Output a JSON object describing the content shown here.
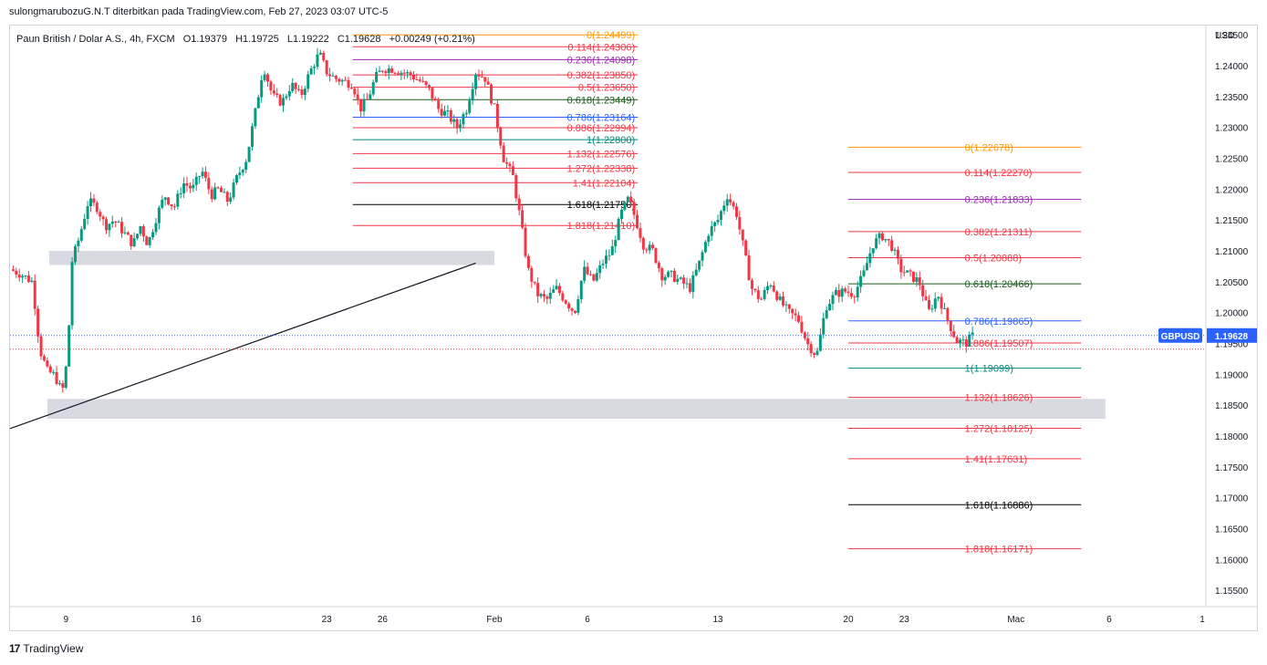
{
  "header": {
    "publisher": "sulongmarubozuG.N.T diterbitkan pada TradingView.com, Feb 27, 2023 03:07 UTC-5"
  },
  "ohlc_line": {
    "symbol": "Paun British / Dolar A.S., 4h, FXCM",
    "open": "O1.19379",
    "high": "H1.19725",
    "low": "L1.19222",
    "close": "C1.19628",
    "change": "+0.00249 (+0.21%)"
  },
  "footer": {
    "brand": "TradingView",
    "logo_glyph": "17"
  },
  "chart_data": {
    "type": "candlestick",
    "symbol": "GBPUSD",
    "timeframe": "4h",
    "currency_label": "USD",
    "last_price": 1.19628,
    "last_price_label": "1.19628",
    "ylim": [
      1.1525,
      1.2465
    ],
    "y_ticks": [
      1.245,
      1.24,
      1.235,
      1.23,
      1.225,
      1.22,
      1.215,
      1.21,
      1.205,
      1.2,
      1.195,
      1.19,
      1.185,
      1.18,
      1.175,
      1.17,
      1.165,
      1.16,
      1.155
    ],
    "y_tick_labels": [
      "1.24500",
      "1.24000",
      "1.23500",
      "1.23000",
      "1.22500",
      "1.22000",
      "1.21500",
      "1.21000",
      "1.20500",
      "1.20000",
      "1.19500",
      "1.19000",
      "1.18500",
      "1.18000",
      "1.17500",
      "1.17000",
      "1.16500",
      "1.16000",
      "1.15500"
    ],
    "x_ticks": [
      {
        "label": "9",
        "day": 9
      },
      {
        "label": "16",
        "day": 16
      },
      {
        "label": "23",
        "day": 23
      },
      {
        "label": "26",
        "day": 26
      },
      {
        "label": "Feb",
        "day": 32
      },
      {
        "label": "6",
        "day": 37
      },
      {
        "label": "13",
        "day": 44
      },
      {
        "label": "20",
        "day": 51
      },
      {
        "label": "23",
        "day": 54
      },
      {
        "label": "Mac",
        "day": 60
      },
      {
        "label": "6",
        "day": 65
      },
      {
        "label": "1",
        "day": 70
      }
    ],
    "xlim_days": [
      6.0,
      70.0
    ],
    "price_path": [
      [
        6.0,
        1.207
      ],
      [
        6.6,
        1.2062
      ],
      [
        7.2,
        1.205
      ],
      [
        7.6,
        1.194
      ],
      [
        8.0,
        1.1905
      ],
      [
        8.4,
        1.1898
      ],
      [
        8.8,
        1.187
      ],
      [
        9.1,
        1.193
      ],
      [
        9.3,
        1.208
      ],
      [
        9.7,
        1.212
      ],
      [
        10.2,
        1.218
      ],
      [
        10.7,
        1.217
      ],
      [
        11.1,
        1.214
      ],
      [
        11.6,
        1.215
      ],
      [
        12.1,
        1.213
      ],
      [
        12.6,
        1.211
      ],
      [
        13.0,
        1.214
      ],
      [
        13.4,
        1.211
      ],
      [
        13.8,
        1.215
      ],
      [
        14.3,
        1.219
      ],
      [
        14.8,
        1.217
      ],
      [
        15.3,
        1.221
      ],
      [
        15.8,
        1.22
      ],
      [
        16.3,
        1.223
      ],
      [
        16.8,
        1.219
      ],
      [
        17.2,
        1.22
      ],
      [
        17.7,
        1.218
      ],
      [
        18.2,
        1.222
      ],
      [
        18.7,
        1.225
      ],
      [
        19.2,
        1.233
      ],
      [
        19.6,
        1.24
      ],
      [
        20.1,
        1.235
      ],
      [
        20.6,
        1.234
      ],
      [
        21.1,
        1.237
      ],
      [
        21.6,
        1.235
      ],
      [
        22.1,
        1.239
      ],
      [
        22.6,
        1.242
      ],
      [
        23.0,
        1.239
      ],
      [
        23.4,
        1.238
      ],
      [
        23.9,
        1.2375
      ],
      [
        24.4,
        1.237
      ],
      [
        24.8,
        1.233
      ],
      [
        25.2,
        1.2345
      ],
      [
        25.6,
        1.238
      ],
      [
        26.0,
        1.2395
      ],
      [
        26.5,
        1.2395
      ],
      [
        27.0,
        1.239
      ],
      [
        27.5,
        1.2385
      ],
      [
        28.0,
        1.2375
      ],
      [
        28.5,
        1.236
      ],
      [
        29.0,
        1.233
      ],
      [
        29.5,
        1.232
      ],
      [
        30.0,
        1.23
      ],
      [
        30.5,
        1.233
      ],
      [
        31.0,
        1.239
      ],
      [
        31.5,
        1.238
      ],
      [
        32.0,
        1.233
      ],
      [
        32.5,
        1.225
      ],
      [
        33.0,
        1.222
      ],
      [
        33.4,
        1.215
      ],
      [
        33.8,
        1.207
      ],
      [
        34.3,
        1.203
      ],
      [
        34.8,
        1.202
      ],
      [
        35.3,
        1.204
      ],
      [
        35.8,
        1.202
      ],
      [
        36.3,
        1.2
      ],
      [
        36.8,
        1.207
      ],
      [
        37.3,
        1.205
      ],
      [
        37.8,
        1.208
      ],
      [
        38.3,
        1.21
      ],
      [
        38.8,
        1.216
      ],
      [
        39.2,
        1.2185
      ],
      [
        39.6,
        1.215
      ],
      [
        40.0,
        1.211
      ],
      [
        40.5,
        1.21
      ],
      [
        41.0,
        1.206
      ],
      [
        41.5,
        1.206
      ],
      [
        42.0,
        1.205
      ],
      [
        42.5,
        1.204
      ],
      [
        43.0,
        1.208
      ],
      [
        43.5,
        1.213
      ],
      [
        44.0,
        1.215
      ],
      [
        44.5,
        1.219
      ],
      [
        45.0,
        1.216
      ],
      [
        45.4,
        1.21
      ],
      [
        45.8,
        1.204
      ],
      [
        46.3,
        1.202
      ],
      [
        46.8,
        1.205
      ],
      [
        47.3,
        1.202
      ],
      [
        47.8,
        1.2
      ],
      [
        48.3,
        1.199
      ],
      [
        48.8,
        1.195
      ],
      [
        49.3,
        1.193
      ],
      [
        49.8,
        1.201
      ],
      [
        50.3,
        1.203
      ],
      [
        50.8,
        1.2035
      ],
      [
        51.3,
        1.203
      ],
      [
        51.8,
        1.206
      ],
      [
        52.3,
        1.211
      ],
      [
        52.8,
        1.2125
      ],
      [
        53.3,
        1.211
      ],
      [
        53.8,
        1.207
      ],
      [
        54.3,
        1.206
      ],
      [
        54.8,
        1.205
      ],
      [
        55.3,
        1.2
      ],
      [
        55.8,
        1.203
      ],
      [
        56.3,
        1.199
      ],
      [
        56.8,
        1.1955
      ],
      [
        57.3,
        1.195
      ],
      [
        57.7,
        1.1963
      ]
    ],
    "fib_set_1": {
      "color_note": "upper-left retracement",
      "levels": [
        {
          "label": "0(1.24499)",
          "price": 1.24499,
          "color": "#ff9800"
        },
        {
          "label": "0.114(1.24306)",
          "price": 1.24306,
          "color": "#f23645"
        },
        {
          "label": "0.236(1.24098)",
          "price": 1.24098,
          "color": "#9c27b0"
        },
        {
          "label": "0.382(1.23850)",
          "price": 1.2385,
          "color": "#f23645"
        },
        {
          "label": "0.5(1.23650)",
          "price": 1.2365,
          "color": "#f23645"
        },
        {
          "label": "0.618(1.23449)",
          "price": 1.23449,
          "color": "#1e5a1e"
        },
        {
          "label": "0.786(1.23164)",
          "price": 1.23164,
          "color": "#2962ff"
        },
        {
          "label": "0.886(1.22994)",
          "price": 1.22994,
          "color": "#f23645"
        },
        {
          "label": "1(1.22800)",
          "price": 1.228,
          "color": "#00897b"
        },
        {
          "label": "1.132(1.22576)",
          "price": 1.22576,
          "color": "#f23645"
        },
        {
          "label": "1.272(1.22338)",
          "price": 1.22338,
          "color": "#f23645"
        },
        {
          "label": "1.41(1.22104)",
          "price": 1.22104,
          "color": "#f23645"
        },
        {
          "label": "1.618(1.21750)",
          "price": 1.2175,
          "color": "#000000"
        },
        {
          "label": "1.818(1.21410)",
          "price": 1.2141,
          "color": "#f23645"
        }
      ],
      "x_start_day": 24.4,
      "x_end_day": 39.7,
      "label_at_day": 39.7
    },
    "fib_set_2": {
      "color_note": "right retracement",
      "levels": [
        {
          "label": "0(1.22678)",
          "price": 1.22678,
          "color": "#ff9800"
        },
        {
          "label": "0.114(1.22270)",
          "price": 1.2227,
          "color": "#f23645"
        },
        {
          "label": "0.236(1.21833)",
          "price": 1.21833,
          "color": "#9c27b0"
        },
        {
          "label": "0.382(1.21311)",
          "price": 1.21311,
          "color": "#f23645"
        },
        {
          "label": "0.5(1.20888)",
          "price": 1.20888,
          "color": "#f23645"
        },
        {
          "label": "0.618(1.20466)",
          "price": 1.20466,
          "color": "#1e5a1e"
        },
        {
          "label": "0.786(1.19865)",
          "price": 1.19865,
          "color": "#2962ff"
        },
        {
          "label": "0.886(1.19507)",
          "price": 1.19507,
          "color": "#f23645"
        },
        {
          "label": "1(1.19099)",
          "price": 1.19099,
          "color": "#00897b"
        },
        {
          "label": "1.132(1.18626)",
          "price": 1.18626,
          "color": "#f23645"
        },
        {
          "label": "1.272(1.18125)",
          "price": 1.18125,
          "color": "#f23645"
        },
        {
          "label": "1.41(1.17631)",
          "price": 1.17631,
          "color": "#f23645"
        },
        {
          "label": "1.618(1.16886)",
          "price": 1.16886,
          "color": "#000000"
        },
        {
          "label": "1.818(1.16171)",
          "price": 1.16171,
          "color": "#f23645"
        }
      ],
      "x_start_day": 51.0,
      "x_end_day": 63.5,
      "label_at_day": 57.4
    },
    "zones": [
      {
        "from_day": 8.1,
        "to_day": 32.0,
        "price_top": 1.21,
        "price_bottom": 1.2077,
        "color": "#d1d4dc"
      },
      {
        "from_day": 8.0,
        "to_day": 64.8,
        "price_top": 1.186,
        "price_bottom": 1.1828,
        "color": "#d1d4dc"
      }
    ],
    "trendline": {
      "start": [
        6.0,
        1.1812
      ],
      "end": [
        31.0,
        1.208
      ],
      "color": "#131722"
    },
    "up_color": "#089981",
    "down_color": "#f23645",
    "last_price_line_color": "#2962ff"
  }
}
